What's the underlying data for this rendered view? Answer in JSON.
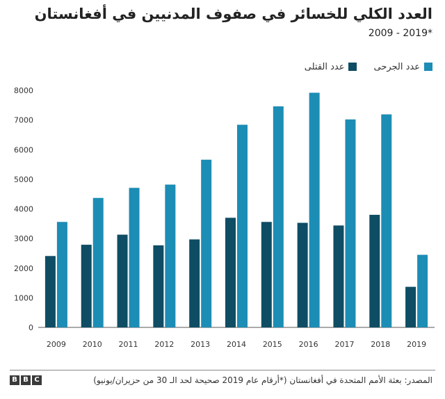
{
  "header": {
    "title": "العدد الكلي للخسائر في صفوف المدنيين في أفغانستان",
    "subtitle": "2009 - 2019*"
  },
  "legend": {
    "killed_label": "عدد القتلى",
    "injured_label": "عدد الجرحى"
  },
  "colors": {
    "killed": "#0e4d64",
    "injured": "#1c8db5"
  },
  "chart_data": {
    "type": "bar",
    "title": "العدد الكلي للخسائر في صفوف المدنيين في أفغانستان",
    "subtitle": "2009 - 2019*",
    "xlabel": "",
    "ylabel": "",
    "ylim": [
      0,
      8000
    ],
    "yticks": [
      0,
      1000,
      2000,
      3000,
      4000,
      5000,
      6000,
      7000,
      8000
    ],
    "grid": false,
    "legend_position": "top-right",
    "categories": [
      "2009",
      "2010",
      "2011",
      "2012",
      "2013",
      "2014",
      "2015",
      "2016",
      "2017",
      "2018",
      "2019"
    ],
    "series": [
      {
        "name": "عدد القتلى",
        "values": [
          2410,
          2790,
          3130,
          2770,
          2970,
          3700,
          3560,
          3530,
          3440,
          3800,
          1370
        ]
      },
      {
        "name": "عدد الجرحى",
        "values": [
          3560,
          4370,
          4710,
          4820,
          5660,
          6840,
          7460,
          7920,
          7020,
          7190,
          2450
        ]
      }
    ]
  },
  "footer": {
    "logo": "BBC",
    "source": "المصدر: بعثة الأمم المتحدة في أفغانستان (*أرقام عام 2019 صحيحة لحد الـ 30 من حزيران/يونيو)"
  }
}
